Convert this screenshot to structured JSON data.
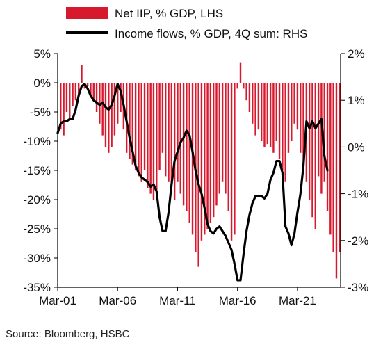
{
  "chart_data": {
    "type": "bar+line",
    "title": "",
    "source": "Source: Bloomberg, HSBC",
    "legend": {
      "placement": "top-left"
    },
    "grid": false,
    "x_tick_labels": [
      "Mar-01",
      "Mar-06",
      "Mar-11",
      "Mar-16",
      "Mar-21"
    ],
    "left_axis": {
      "ylim": [
        -35,
        5
      ],
      "ticks": [
        5,
        0,
        -5,
        -10,
        -15,
        -20,
        -25,
        -30,
        -35
      ],
      "tick_labels": [
        "5%",
        "0%",
        "-5%",
        "-10%",
        "-15%",
        "-20%",
        "-25%",
        "-30%",
        "-35%"
      ]
    },
    "right_axis": {
      "ylim": [
        -3,
        2
      ],
      "ticks": [
        2,
        1,
        0,
        -1,
        -2,
        -3
      ],
      "tick_labels": [
        "2%",
        "1%",
        "0%",
        "-1%",
        "-2%",
        "-3%"
      ]
    },
    "x": {
      "start_year": 2001.0,
      "end_year": 2024.6,
      "tick_years": [
        2001,
        2006,
        2011,
        2016,
        2021
      ]
    },
    "series": [
      {
        "name": "Net IIP, % GDP, LHS",
        "type": "bar",
        "axis": "left",
        "color": "#d7192d",
        "points": [
          [
            2001.25,
            -8
          ],
          [
            2001.5,
            -9
          ],
          [
            2001.75,
            -5
          ],
          [
            2002.0,
            -6
          ],
          [
            2002.25,
            -4
          ],
          [
            2002.5,
            -3
          ],
          [
            2002.75,
            -2
          ],
          [
            2003.0,
            3
          ],
          [
            2003.25,
            -1
          ],
          [
            2003.5,
            -0.5
          ],
          [
            2003.75,
            -2
          ],
          [
            2004.0,
            -3
          ],
          [
            2004.25,
            -5
          ],
          [
            2004.5,
            -7
          ],
          [
            2004.75,
            -9
          ],
          [
            2005.0,
            -11
          ],
          [
            2005.25,
            -12
          ],
          [
            2005.5,
            -11
          ],
          [
            2005.75,
            -9
          ],
          [
            2006.0,
            -7
          ],
          [
            2006.25,
            -5
          ],
          [
            2006.5,
            -8
          ],
          [
            2006.75,
            -12
          ],
          [
            2007.0,
            -13
          ],
          [
            2007.25,
            -14
          ],
          [
            2007.5,
            -15
          ],
          [
            2007.75,
            -16
          ],
          [
            2008.0,
            -17
          ],
          [
            2008.25,
            -15
          ],
          [
            2008.5,
            -18
          ],
          [
            2008.75,
            -19
          ],
          [
            2009.0,
            -20
          ],
          [
            2009.25,
            -19
          ],
          [
            2009.5,
            -15
          ],
          [
            2009.75,
            -12
          ],
          [
            2010.0,
            -16
          ],
          [
            2010.25,
            -17
          ],
          [
            2010.5,
            -19
          ],
          [
            2010.75,
            -20
          ],
          [
            2011.0,
            -17
          ],
          [
            2011.25,
            -19
          ],
          [
            2011.5,
            -21
          ],
          [
            2011.75,
            -22
          ],
          [
            2012.0,
            -24
          ],
          [
            2012.25,
            -26
          ],
          [
            2012.5,
            -29
          ],
          [
            2012.75,
            -31.5
          ],
          [
            2013.0,
            -27
          ],
          [
            2013.25,
            -26
          ],
          [
            2013.5,
            -25
          ],
          [
            2013.75,
            -24
          ],
          [
            2014.0,
            -23
          ],
          [
            2014.25,
            -21
          ],
          [
            2014.5,
            -19
          ],
          [
            2014.75,
            -17
          ],
          [
            2015.0,
            -19
          ],
          [
            2015.25,
            -22
          ],
          [
            2015.5,
            -27
          ],
          [
            2015.75,
            -26
          ],
          [
            2016.0,
            -1
          ],
          [
            2016.25,
            3.5
          ],
          [
            2016.5,
            -1
          ],
          [
            2016.75,
            -3
          ],
          [
            2017.0,
            -5
          ],
          [
            2017.25,
            -7
          ],
          [
            2017.5,
            -9
          ],
          [
            2017.75,
            -8
          ],
          [
            2018.0,
            -10
          ],
          [
            2018.25,
            -11
          ],
          [
            2018.5,
            -10.5
          ],
          [
            2018.75,
            -11
          ],
          [
            2019.0,
            -12
          ],
          [
            2019.25,
            -10
          ],
          [
            2019.5,
            -13
          ],
          [
            2019.75,
            -15
          ],
          [
            2020.0,
            -17
          ],
          [
            2020.25,
            -12
          ],
          [
            2020.5,
            -10
          ],
          [
            2020.75,
            -7
          ],
          [
            2021.0,
            -8
          ],
          [
            2021.25,
            -12
          ],
          [
            2021.5,
            -14
          ],
          [
            2021.75,
            -17
          ],
          [
            2022.0,
            -20
          ],
          [
            2022.25,
            -23
          ],
          [
            2022.5,
            -25
          ],
          [
            2022.75,
            -16
          ],
          [
            2023.0,
            -19
          ],
          [
            2023.25,
            -17
          ],
          [
            2023.5,
            -22
          ],
          [
            2023.75,
            -26
          ],
          [
            2024.0,
            -29
          ],
          [
            2024.25,
            -33.5
          ],
          [
            2024.5,
            -29
          ]
        ]
      },
      {
        "name": "Income flows, % GDP, 4Q sum: RHS",
        "type": "line",
        "axis": "right",
        "color": "#000000",
        "points": [
          [
            2001.0,
            0.3
          ],
          [
            2001.25,
            0.5
          ],
          [
            2001.5,
            0.55
          ],
          [
            2001.75,
            0.55
          ],
          [
            2002.0,
            0.6
          ],
          [
            2002.25,
            0.6
          ],
          [
            2002.5,
            0.8
          ],
          [
            2002.75,
            1.1
          ],
          [
            2003.0,
            1.3
          ],
          [
            2003.25,
            1.35
          ],
          [
            2003.5,
            1.25
          ],
          [
            2003.75,
            1.1
          ],
          [
            2004.0,
            1.0
          ],
          [
            2004.25,
            0.95
          ],
          [
            2004.5,
            0.9
          ],
          [
            2004.75,
            0.95
          ],
          [
            2005.0,
            0.85
          ],
          [
            2005.25,
            0.8
          ],
          [
            2005.5,
            0.9
          ],
          [
            2005.75,
            1.1
          ],
          [
            2006.0,
            1.35
          ],
          [
            2006.25,
            1.2
          ],
          [
            2006.5,
            0.9
          ],
          [
            2006.75,
            0.55
          ],
          [
            2007.0,
            0.2
          ],
          [
            2007.25,
            -0.1
          ],
          [
            2007.5,
            -0.4
          ],
          [
            2007.75,
            -0.55
          ],
          [
            2008.0,
            -0.65
          ],
          [
            2008.25,
            -0.7
          ],
          [
            2008.5,
            -0.75
          ],
          [
            2008.75,
            -0.85
          ],
          [
            2009.0,
            -0.8
          ],
          [
            2009.25,
            -0.95
          ],
          [
            2009.5,
            -1.5
          ],
          [
            2009.75,
            -1.8
          ],
          [
            2010.0,
            -1.8
          ],
          [
            2010.25,
            -1.4
          ],
          [
            2010.5,
            -0.8
          ],
          [
            2010.75,
            -0.3
          ],
          [
            2011.0,
            -0.1
          ],
          [
            2011.25,
            0.1
          ],
          [
            2011.5,
            0.2
          ],
          [
            2011.75,
            0.35
          ],
          [
            2012.0,
            0.25
          ],
          [
            2012.25,
            -0.1
          ],
          [
            2012.5,
            -0.5
          ],
          [
            2012.75,
            -0.8
          ],
          [
            2013.0,
            -1.0
          ],
          [
            2013.25,
            -1.3
          ],
          [
            2013.5,
            -1.65
          ],
          [
            2013.75,
            -1.8
          ],
          [
            2014.0,
            -1.85
          ],
          [
            2014.25,
            -1.75
          ],
          [
            2014.5,
            -1.7
          ],
          [
            2014.75,
            -1.8
          ],
          [
            2015.0,
            -1.9
          ],
          [
            2015.25,
            -2.05
          ],
          [
            2015.5,
            -2.2
          ],
          [
            2015.75,
            -2.5
          ],
          [
            2016.0,
            -2.85
          ],
          [
            2016.25,
            -2.85
          ],
          [
            2016.5,
            -2.3
          ],
          [
            2016.75,
            -1.8
          ],
          [
            2017.0,
            -1.45
          ],
          [
            2017.25,
            -1.2
          ],
          [
            2017.5,
            -1.05
          ],
          [
            2017.75,
            -1.05
          ],
          [
            2018.0,
            -1.05
          ],
          [
            2018.25,
            -1.1
          ],
          [
            2018.5,
            -1.0
          ],
          [
            2018.75,
            -0.7
          ],
          [
            2019.0,
            -0.55
          ],
          [
            2019.25,
            -0.3
          ],
          [
            2019.5,
            -0.3
          ],
          [
            2019.75,
            -0.55
          ],
          [
            2020.0,
            -1.7
          ],
          [
            2020.25,
            -1.85
          ],
          [
            2020.5,
            -2.1
          ],
          [
            2020.75,
            -1.85
          ],
          [
            2021.0,
            -1.4
          ],
          [
            2021.25,
            -1.0
          ],
          [
            2021.5,
            -0.4
          ],
          [
            2021.75,
            0.55
          ],
          [
            2022.0,
            0.4
          ],
          [
            2022.25,
            0.55
          ],
          [
            2022.5,
            0.4
          ],
          [
            2022.75,
            0.5
          ],
          [
            2023.0,
            0.6
          ],
          [
            2023.25,
            -0.2
          ],
          [
            2023.5,
            -0.5
          ]
        ]
      }
    ]
  }
}
